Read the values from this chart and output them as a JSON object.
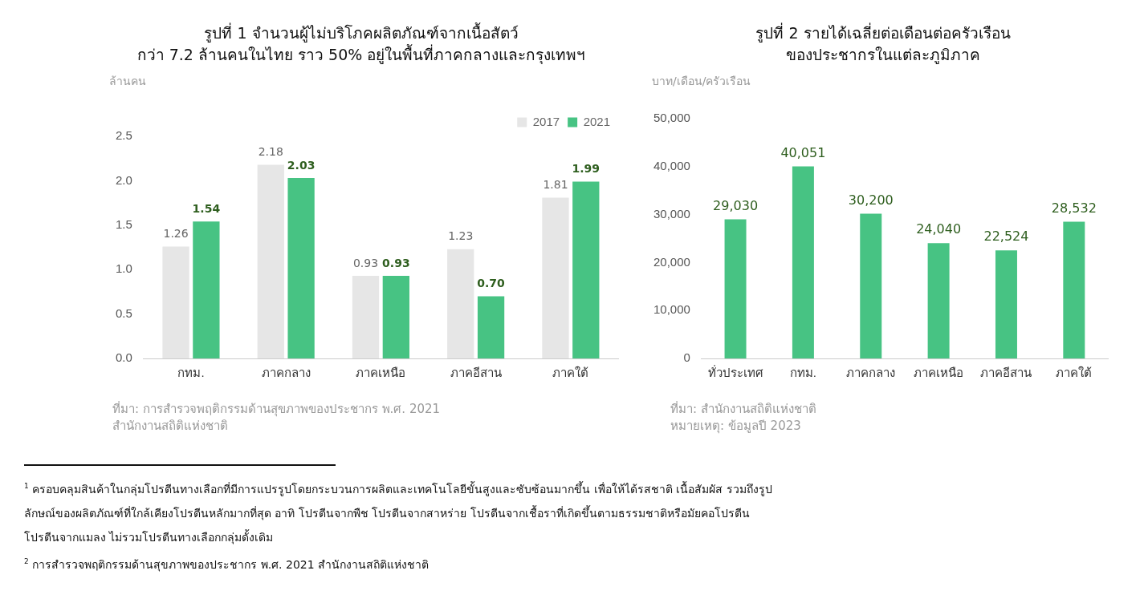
{
  "chart_data": [
    {
      "type": "bar",
      "title": "รูปที่ 1 จำนวนผู้ไม่บริโภคผลิตภัณฑ์จากเนื้อสัตว์\nกว่า 7.2 ล้านคนในไทย ราว 50% อยู่ในพื้นที่ภาคกลางและกรุงเทพฯ",
      "ylabel": "ล้านคน",
      "categories": [
        "กทม.",
        "ภาคกลาง",
        "ภาคเหนือ",
        "ภาคอีสาน",
        "ภาคใต้"
      ],
      "series": [
        {
          "name": "2017",
          "color": "#e6e6e6",
          "values": [
            1.26,
            2.18,
            0.93,
            1.23,
            1.81
          ],
          "value_labels": [
            "1.26",
            "2.18",
            "0.93",
            "1.23",
            "1.81"
          ]
        },
        {
          "name": "2021",
          "color": "#47c383",
          "values": [
            1.54,
            2.03,
            0.93,
            0.7,
            1.99
          ],
          "value_labels": [
            "1.54",
            "2.03",
            "0.93",
            "0.70",
            "1.99"
          ]
        }
      ],
      "ylim": [
        0,
        2.5
      ],
      "yticks": [
        {
          "value": 0,
          "label": "0.0"
        },
        {
          "value": 0.5,
          "label": "0.5"
        },
        {
          "value": 1,
          "label": "1.0"
        },
        {
          "value": 1.5,
          "label": "1.5"
        },
        {
          "value": 2,
          "label": "2.0"
        },
        {
          "value": 2.5,
          "label": "2.5"
        }
      ],
      "grid": false,
      "legend": "top right",
      "annotations": [
        "ที่มา: การสำรวจพฤติกรรมด้านสุขภาพของประชากร พ.ศ. 2021\nสำนักงานสถิติแห่งชาติ"
      ]
    },
    {
      "type": "bar",
      "title": "รูปที่ 2 รายได้เฉลี่ยต่อเดือนต่อครัวเรือน\nของประชากรในแต่ละภูมิภาค",
      "ylabel": "บาท/เดือน/ครัวเรือน",
      "categories": [
        "ทั่วประเทศ",
        "กทม.",
        "ภาคกลาง",
        "ภาคเหนือ",
        "ภาคอีสาน",
        "ภาคใต้"
      ],
      "series": [
        {
          "color": "#47c383",
          "values": [
            29030,
            40051,
            30200,
            24040,
            22524,
            28532
          ],
          "value_labels": [
            "29,030",
            "40,051",
            "30,200",
            "24,040",
            "22,524",
            "28,532"
          ]
        }
      ],
      "ylim": [
        0,
        50000
      ],
      "yticks": [
        0,
        {
          "value": 10000,
          "label": "10,000"
        },
        {
          "value": 20000,
          "label": "20,000"
        },
        {
          "value": 30000,
          "label": "30,000"
        },
        {
          "value": 40000,
          "label": "40,000"
        },
        {
          "value": 50000,
          "label": "50,000"
        }
      ],
      "grid": false,
      "annotations": [
        "ที่มา: สำนักงานสถิติแห่งชาติ",
        "หมายเหตุ: ข้อมูลปี 2023"
      ]
    },
    {
      "type": "other",
      "annotations": [
        "$^{1}$ ครอบคลุมสินค้าในกลุ่มโปรตีนทางเลือกที่มีการแปรรูปโดยกระบวนการผลิตและเทคโนโลยีขั้นสูงและซับซ้อนมากขึ้น เพื่อให้ได้รสชาติ เนื้อสัมผัส รวมถึงรูปลักษณ์ของผลิตภัณฑ์ที่ใกล้เคียงโปรตีนหลักมากที่สุด อาทิ โปรตีนจากพืช โปรตีนจากสาหร่าย โปรตีนจากเชื้อราที่เกิดขึ้นตามธรรมชาติหรือมัยคอโปรตีน โปรตีนจากแมลง ไม่รวมโปรตีนทางเลือกกลุ่มดั้งเดิม",
        "$^{2}$ การสำรวจพฤติกรรมด้านสุขภาพของประชากร พ.ศ. 2021 สำนักงานสถิติแห่งชาติ"
      ]
    }
  ]
}
